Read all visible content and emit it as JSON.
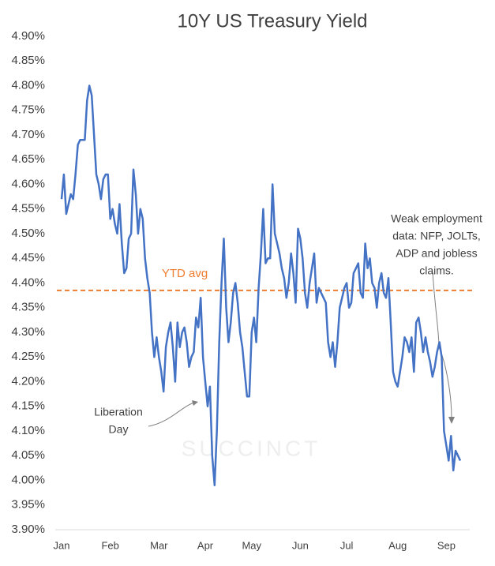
{
  "chart_data": {
    "type": "line",
    "title": "10Y US Treasury Yield",
    "watermark": "SUCCINCT",
    "xlim": [
      0,
      172
    ],
    "xticks": [
      {
        "value": 0,
        "label": "Jan"
      },
      {
        "value": 21,
        "label": "Feb"
      },
      {
        "value": 42,
        "label": "Mar"
      },
      {
        "value": 62,
        "label": "Apr"
      },
      {
        "value": 82,
        "label": "May"
      },
      {
        "value": 103,
        "label": "Jun"
      },
      {
        "value": 123,
        "label": "Jul"
      },
      {
        "value": 145,
        "label": "Aug"
      },
      {
        "value": 166,
        "label": "Sep"
      }
    ],
    "ylim": [
      3.9,
      4.9
    ],
    "yticks": [
      {
        "value": 3.9,
        "label": "3.90%"
      },
      {
        "value": 3.95,
        "label": "3.95%"
      },
      {
        "value": 4.0,
        "label": "4.00%"
      },
      {
        "value": 4.05,
        "label": "4.05%"
      },
      {
        "value": 4.1,
        "label": "4.10%"
      },
      {
        "value": 4.15,
        "label": "4.15%"
      },
      {
        "value": 4.2,
        "label": "4.20%"
      },
      {
        "value": 4.25,
        "label": "4.25%"
      },
      {
        "value": 4.3,
        "label": "4.30%"
      },
      {
        "value": 4.35,
        "label": "4.35%"
      },
      {
        "value": 4.4,
        "label": "4.40%"
      },
      {
        "value": 4.45,
        "label": "4.45%"
      },
      {
        "value": 4.5,
        "label": "4.50%"
      },
      {
        "value": 4.55,
        "label": "4.55%"
      },
      {
        "value": 4.6,
        "label": "4.60%"
      },
      {
        "value": 4.65,
        "label": "4.65%"
      },
      {
        "value": 4.7,
        "label": "4.70%"
      },
      {
        "value": 4.75,
        "label": "4.75%"
      },
      {
        "value": 4.8,
        "label": "4.80%"
      },
      {
        "value": 4.85,
        "label": "4.85%"
      },
      {
        "value": 4.9,
        "label": "4.90%"
      }
    ],
    "series": [
      {
        "name": "10Y US Treasury Yield",
        "color": "#4472c4",
        "values": [
          4.57,
          4.62,
          4.54,
          4.56,
          4.58,
          4.57,
          4.62,
          4.68,
          4.69,
          4.69,
          4.69,
          4.77,
          4.8,
          4.78,
          4.7,
          4.62,
          4.6,
          4.57,
          4.61,
          4.62,
          4.62,
          4.53,
          4.55,
          4.52,
          4.5,
          4.56,
          4.48,
          4.42,
          4.43,
          4.49,
          4.5,
          4.63,
          4.58,
          4.5,
          4.55,
          4.53,
          4.45,
          4.41,
          4.38,
          4.3,
          4.25,
          4.29,
          4.25,
          4.22,
          4.18,
          4.27,
          4.3,
          4.32,
          4.27,
          4.2,
          4.32,
          4.27,
          4.3,
          4.31,
          4.28,
          4.23,
          4.25,
          4.26,
          4.33,
          4.31,
          4.37,
          4.25,
          4.2,
          4.15,
          4.19,
          4.05,
          3.99,
          4.1,
          4.28,
          4.4,
          4.49,
          4.35,
          4.28,
          4.32,
          4.38,
          4.4,
          4.36,
          4.3,
          4.27,
          4.22,
          4.17,
          4.17,
          4.3,
          4.33,
          4.28,
          4.39,
          4.46,
          4.55,
          4.44,
          4.45,
          4.45,
          4.6,
          4.5,
          4.48,
          4.46,
          4.43,
          4.41,
          4.37,
          4.4,
          4.46,
          4.42,
          4.36,
          4.51,
          4.49,
          4.45,
          4.38,
          4.35,
          4.4,
          4.43,
          4.46,
          4.36,
          4.39,
          4.38,
          4.37,
          4.36,
          4.28,
          4.25,
          4.28,
          4.23,
          4.28,
          4.35,
          4.37,
          4.39,
          4.4,
          4.35,
          4.36,
          4.42,
          4.43,
          4.44,
          4.38,
          4.37,
          4.48,
          4.43,
          4.45,
          4.4,
          4.39,
          4.35,
          4.4,
          4.42,
          4.38,
          4.37,
          4.41,
          4.32,
          4.22,
          4.2,
          4.19,
          4.22,
          4.25,
          4.29,
          4.28,
          4.26,
          4.29,
          4.22,
          4.32,
          4.33,
          4.3,
          4.26,
          4.29,
          4.26,
          4.24,
          4.21,
          4.23,
          4.26,
          4.28,
          4.25,
          4.1,
          4.07,
          4.04,
          4.09,
          4.02,
          4.06,
          4.05,
          4.04
        ]
      }
    ],
    "reference_line": {
      "label": "YTD avg",
      "value": 4.385,
      "color": "#ed7d31"
    },
    "annotations": [
      {
        "lines": [
          "Liberation",
          "Day"
        ]
      },
      {
        "lines": [
          "Weak employment",
          "data: NFP, JOLTs,",
          "ADP and jobless",
          "claims."
        ]
      }
    ]
  }
}
